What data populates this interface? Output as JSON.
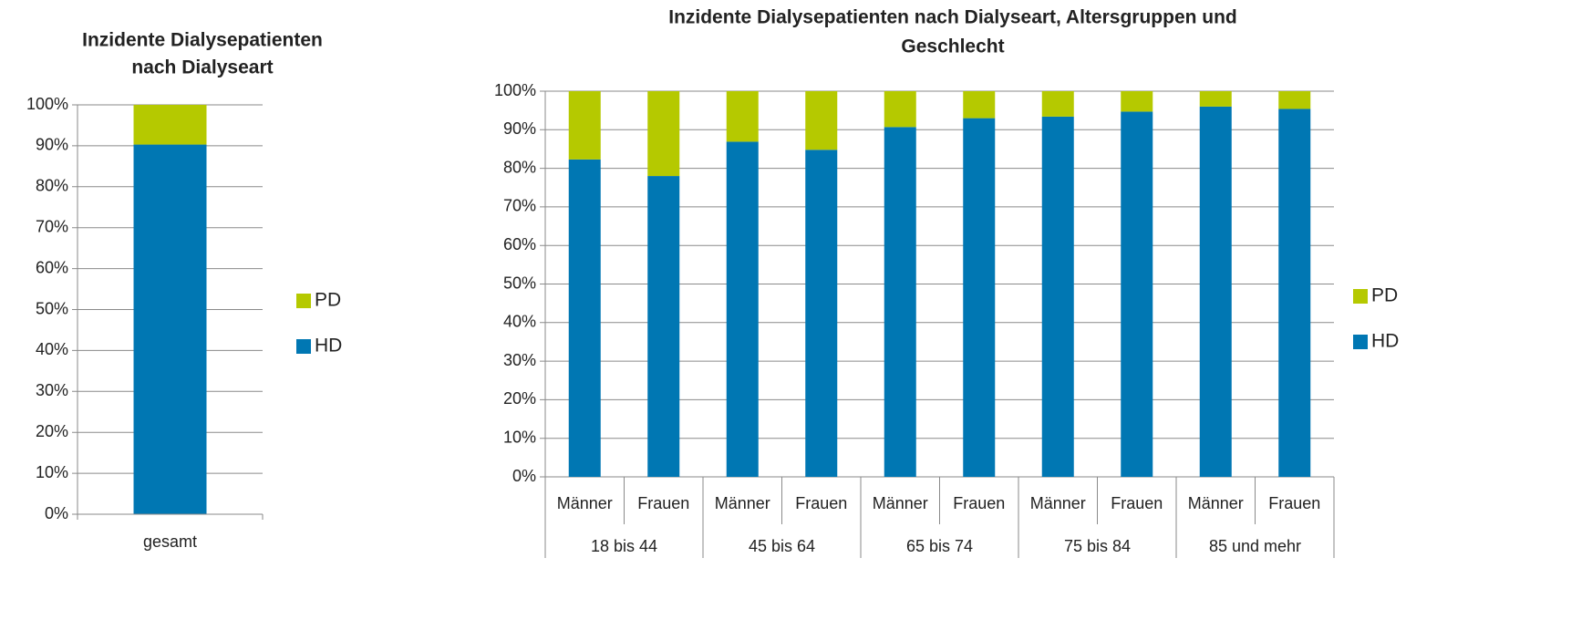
{
  "chart_data": [
    {
      "type": "bar",
      "stacked": true,
      "title": [
        "Inzidente Dialysepatienten",
        "nach Dialyseart"
      ],
      "categories": [
        "gesamt"
      ],
      "series": [
        {
          "name": "HD",
          "color": "#0077b3",
          "values": [
            90.3
          ]
        },
        {
          "name": "PD",
          "color": "#b5c900",
          "values": [
            9.7
          ]
        }
      ],
      "ylim": [
        0,
        100
      ],
      "yticks": [
        {
          "value": 0,
          "label": "0%"
        },
        {
          "value": 10,
          "label": "10%"
        },
        {
          "value": 20,
          "label": "20%"
        },
        {
          "value": 30,
          "label": "30%"
        },
        {
          "value": 40,
          "label": "40%"
        },
        {
          "value": 50,
          "label": "50%"
        },
        {
          "value": 60,
          "label": "60%"
        },
        {
          "value": 70,
          "label": "70%"
        },
        {
          "value": 80,
          "label": "80%"
        },
        {
          "value": 90,
          "label": "90%"
        },
        {
          "value": 100,
          "label": "100%"
        }
      ],
      "grid": true,
      "legend": "right"
    },
    {
      "type": "bar",
      "stacked": true,
      "title": [
        "Inzidente Dialysepatienten nach Dialyseart, Altersgruppen und",
        "Geschlecht"
      ],
      "categories": [
        "Männer",
        "Frauen",
        "Männer",
        "Frauen",
        "Männer",
        "Frauen",
        "Männer",
        "Frauen",
        "Männer",
        "Frauen"
      ],
      "groups": [
        "18 bis 44",
        "45 bis 64",
        "65 bis 74",
        "75 bis 84",
        "85 und mehr"
      ],
      "series": [
        {
          "name": "HD",
          "color": "#0077b3",
          "values": [
            82.3,
            78,
            86.9,
            84.8,
            90.7,
            93,
            93.4,
            94.7,
            96,
            95.4
          ]
        },
        {
          "name": "PD",
          "color": "#b5c900",
          "values": [
            17.7,
            22,
            13.1,
            15.2,
            9.3,
            7,
            6.6,
            5.3,
            4,
            4.6
          ]
        }
      ],
      "ylim": [
        0,
        100
      ],
      "yticks": [
        {
          "value": 0,
          "label": "0%"
        },
        {
          "value": 10,
          "label": "10%"
        },
        {
          "value": 20,
          "label": "20%"
        },
        {
          "value": 30,
          "label": "30%"
        },
        {
          "value": 40,
          "label": "40%"
        },
        {
          "value": 50,
          "label": "50%"
        },
        {
          "value": 60,
          "label": "60%"
        },
        {
          "value": 70,
          "label": "70%"
        },
        {
          "value": 80,
          "label": "80%"
        },
        {
          "value": 90,
          "label": "90%"
        },
        {
          "value": 100,
          "label": "100%"
        }
      ],
      "grid": true,
      "legend": "right"
    }
  ]
}
